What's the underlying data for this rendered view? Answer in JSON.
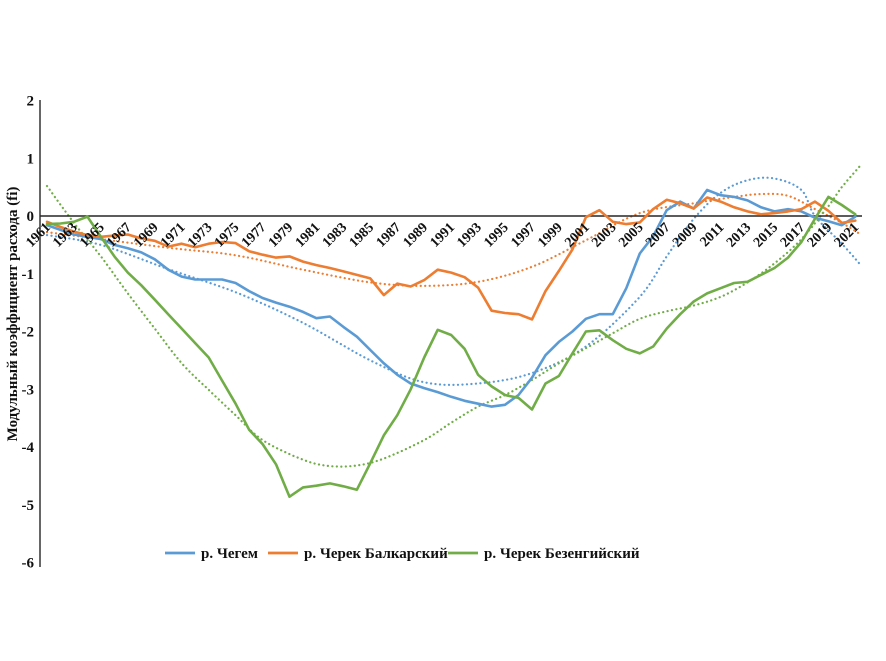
{
  "figure": {
    "background": "#ffffff",
    "axis_color": "#404040"
  },
  "chart_data": {
    "type": "line",
    "title": "",
    "xlabel": "",
    "ylabel": "Модульный коэффициент расхода (fi)",
    "ylim": [
      -6,
      2
    ],
    "y_ticks": [
      2,
      1,
      0,
      -1,
      -2,
      -3,
      -4,
      -5,
      -6
    ],
    "grid": false,
    "legend_position": "bottom",
    "x": [
      1961,
      1962,
      1963,
      1964,
      1965,
      1966,
      1967,
      1968,
      1969,
      1970,
      1971,
      1972,
      1973,
      1974,
      1975,
      1976,
      1977,
      1978,
      1979,
      1980,
      1981,
      1982,
      1983,
      1984,
      1985,
      1986,
      1987,
      1988,
      1989,
      1990,
      1991,
      1992,
      1993,
      1994,
      1995,
      1996,
      1997,
      1998,
      1999,
      2000,
      2001,
      2002,
      2003,
      2004,
      2005,
      2006,
      2007,
      2008,
      2009,
      2010,
      2011,
      2012,
      2013,
      2014,
      2015,
      2016,
      2017,
      2018,
      2019,
      2020,
      2021
    ],
    "x_tick_labels": [
      "1961",
      "1963",
      "1965",
      "1967",
      "1969",
      "1971",
      "1973",
      "1975",
      "1977",
      "1979",
      "1981",
      "1983",
      "1985",
      "1987",
      "1989",
      "1991",
      "1993",
      "1995",
      "1997",
      "1999",
      "2001",
      "2003",
      "2005",
      "2007",
      "2009",
      "2011",
      "2013",
      "2015",
      "2017",
      "2019",
      "2021"
    ],
    "series": [
      {
        "name": "р. Чегем",
        "color": "#5B9BD5",
        "style": "solid",
        "values": [
          -0.16,
          -0.24,
          -0.32,
          -0.36,
          -0.4,
          -0.5,
          -0.56,
          -0.63,
          -0.75,
          -0.93,
          -1.05,
          -1.1,
          -1.1,
          -1.1,
          -1.16,
          -1.3,
          -1.42,
          -1.5,
          -1.57,
          -1.66,
          -1.77,
          -1.74,
          -1.92,
          -2.09,
          -2.32,
          -2.55,
          -2.75,
          -2.9,
          -2.98,
          -3.05,
          -3.13,
          -3.2,
          -3.25,
          -3.3,
          -3.27,
          -3.1,
          -2.8,
          -2.41,
          -2.18,
          -2.0,
          -1.78,
          -1.7,
          -1.7,
          -1.25,
          -0.65,
          -0.35,
          0.1,
          0.25,
          0.13,
          0.45,
          0.36,
          0.33,
          0.27,
          0.15,
          0.08,
          0.12,
          0.08,
          -0.03,
          -0.09,
          -0.16,
          -0.01
        ]
      },
      {
        "name": "р. Черек Балкарский",
        "color": "#ED7D31",
        "style": "solid",
        "values": [
          -0.1,
          -0.19,
          -0.27,
          -0.33,
          -0.36,
          -0.34,
          -0.32,
          -0.39,
          -0.43,
          -0.53,
          -0.48,
          -0.54,
          -0.48,
          -0.45,
          -0.47,
          -0.61,
          -0.67,
          -0.72,
          -0.7,
          -0.79,
          -0.85,
          -0.9,
          -0.96,
          -1.02,
          -1.08,
          -1.37,
          -1.17,
          -1.22,
          -1.11,
          -0.93,
          -0.98,
          -1.06,
          -1.24,
          -1.64,
          -1.68,
          -1.7,
          -1.79,
          -1.3,
          -0.95,
          -0.58,
          -0.02,
          0.1,
          -0.1,
          -0.14,
          -0.11,
          0.12,
          0.28,
          0.22,
          0.13,
          0.32,
          0.25,
          0.15,
          0.08,
          0.03,
          0.05,
          0.08,
          0.12,
          0.25,
          0.09,
          -0.12,
          -0.08
        ]
      },
      {
        "name": "р. Черек Безенгийский",
        "color": "#70AD47",
        "style": "solid",
        "values": [
          -0.14,
          -0.13,
          -0.1,
          -0.01,
          -0.36,
          -0.7,
          -0.98,
          -1.2,
          -1.45,
          -1.7,
          -1.95,
          -2.2,
          -2.45,
          -2.85,
          -3.25,
          -3.7,
          -3.95,
          -4.3,
          -4.86,
          -4.7,
          -4.67,
          -4.63,
          -4.68,
          -4.74,
          -4.28,
          -3.8,
          -3.45,
          -3.0,
          -2.45,
          -1.97,
          -2.06,
          -2.3,
          -2.75,
          -2.95,
          -3.1,
          -3.15,
          -3.35,
          -2.9,
          -2.77,
          -2.38,
          -2.0,
          -1.98,
          -2.15,
          -2.3,
          -2.38,
          -2.26,
          -1.95,
          -1.7,
          -1.48,
          -1.34,
          -1.25,
          -1.16,
          -1.14,
          -1.02,
          -0.9,
          -0.72,
          -0.45,
          -0.05,
          0.33,
          0.19,
          0.03
        ]
      }
    ],
    "trendlines": [
      {
        "trend_of": "р. Чегем",
        "color": "#5B9BD5",
        "style": "dotted",
        "points": [
          [
            1961,
            -0.33
          ],
          [
            1965,
            -0.5
          ],
          [
            1970,
            -0.92
          ],
          [
            1975,
            -1.32
          ],
          [
            1980,
            -1.85
          ],
          [
            1985,
            -2.5
          ],
          [
            1989,
            -2.88
          ],
          [
            1993,
            -2.9
          ],
          [
            1997,
            -2.72
          ],
          [
            2001,
            -2.26
          ],
          [
            2005,
            -1.4
          ],
          [
            2007,
            -0.7
          ],
          [
            2009,
            -0.05
          ],
          [
            2011,
            0.4
          ],
          [
            2013,
            0.62
          ],
          [
            2015,
            0.65
          ],
          [
            2017,
            0.45
          ],
          [
            2018,
            0.0
          ],
          [
            2020,
            -0.48
          ],
          [
            2021.4,
            -0.85
          ]
        ]
      },
      {
        "trend_of": "р. Черек Балкарский",
        "color": "#ED7D31",
        "style": "dotted",
        "points": [
          [
            1961,
            -0.28
          ],
          [
            1965,
            -0.4
          ],
          [
            1970,
            -0.55
          ],
          [
            1975,
            -0.68
          ],
          [
            1980,
            -0.93
          ],
          [
            1985,
            -1.15
          ],
          [
            1989,
            -1.21
          ],
          [
            1993,
            -1.14
          ],
          [
            1997,
            -0.88
          ],
          [
            2001,
            -0.42
          ],
          [
            2005,
            0.05
          ],
          [
            2009,
            0.22
          ],
          [
            2012,
            0.33
          ],
          [
            2014,
            0.38
          ],
          [
            2016,
            0.35
          ],
          [
            2018,
            0.12
          ],
          [
            2020,
            -0.12
          ],
          [
            2021.4,
            -0.32
          ]
        ]
      },
      {
        "trend_of": "р. Черек Безенгийский",
        "color": "#70AD47",
        "style": "dotted",
        "points": [
          [
            1961,
            0.52
          ],
          [
            1963,
            -0.12
          ],
          [
            1965,
            -0.7
          ],
          [
            1967,
            -1.34
          ],
          [
            1969,
            -1.95
          ],
          [
            1971,
            -2.55
          ],
          [
            1973,
            -3.01
          ],
          [
            1975,
            -3.45
          ],
          [
            1977,
            -3.88
          ],
          [
            1980,
            -4.22
          ],
          [
            1982,
            -4.33
          ],
          [
            1984,
            -4.32
          ],
          [
            1986,
            -4.2
          ],
          [
            1989,
            -3.88
          ],
          [
            1991,
            -3.58
          ],
          [
            1993,
            -3.3
          ],
          [
            1995,
            -3.1
          ],
          [
            1997,
            -2.84
          ],
          [
            1999,
            -2.55
          ],
          [
            2001,
            -2.29
          ],
          [
            2003,
            -2.03
          ],
          [
            2005,
            -1.78
          ],
          [
            2007,
            -1.65
          ],
          [
            2009,
            -1.55
          ],
          [
            2011,
            -1.4
          ],
          [
            2013,
            -1.15
          ],
          [
            2015,
            -0.82
          ],
          [
            2017,
            -0.4
          ],
          [
            2019,
            0.17
          ],
          [
            2020,
            0.5
          ],
          [
            2021.4,
            0.88
          ]
        ]
      }
    ]
  }
}
